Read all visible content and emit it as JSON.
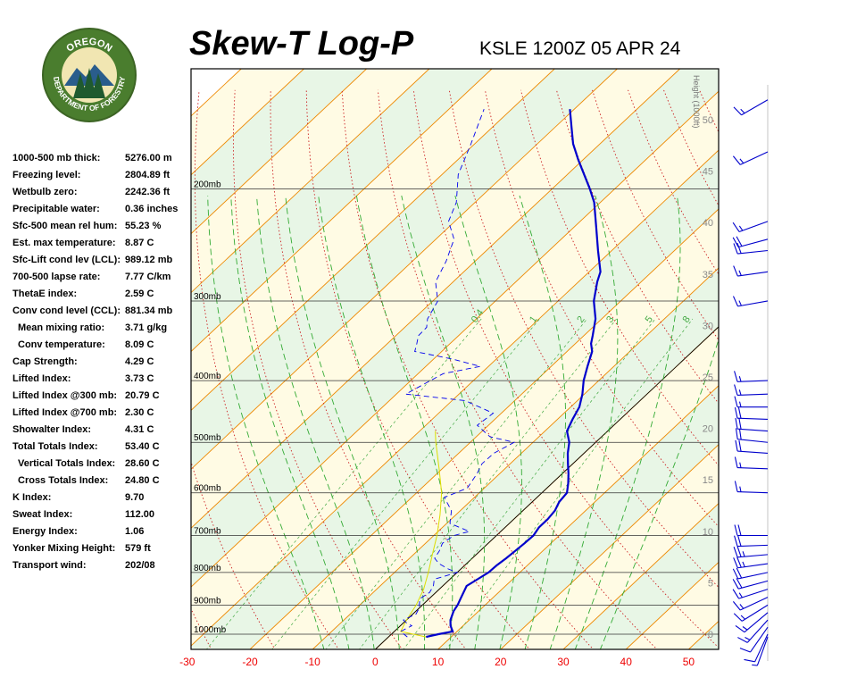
{
  "header": {
    "title": "Skew-T Log-P",
    "station": "KSLE 1200Z 05 APR 24"
  },
  "logo": {
    "top_text": "OREGON",
    "bottom_text": "DEPARTMENT OF FORESTRY",
    "colors": {
      "ring": "#4a7d2e",
      "inner": "#f1e6b2",
      "tree": "#1f5a2e",
      "mountain": "#2a5d8c"
    }
  },
  "indices": [
    {
      "label": "1000-500 mb thick:",
      "value": "5276.00 m",
      "indent": false
    },
    {
      "label": "Freezing level:",
      "value": "2804.89 ft",
      "indent": false
    },
    {
      "label": "Wetbulb zero:",
      "value": "2242.36 ft",
      "indent": false
    },
    {
      "label": "Precipitable water:",
      "value": "0.36 inches",
      "indent": false
    },
    {
      "label": "Sfc-500 mean rel hum:",
      "value": "55.23 %",
      "indent": false
    },
    {
      "label": "Est. max temperature:",
      "value": "8.87 C",
      "indent": false
    },
    {
      "label": "Sfc-Lift cond lev (LCL):",
      "value": "989.12 mb",
      "indent": false
    },
    {
      "label": "700-500 lapse rate:",
      "value": "7.77 C/km",
      "indent": false
    },
    {
      "label": "ThetaE index:",
      "value": "2.59 C",
      "indent": false
    },
    {
      "label": "Conv cond level (CCL):",
      "value": "881.34 mb",
      "indent": false
    },
    {
      "label": "Mean mixing ratio:",
      "value": "3.71 g/kg",
      "indent": true
    },
    {
      "label": "Conv temperature:",
      "value": "8.09 C",
      "indent": true
    },
    {
      "label": "Cap Strength:",
      "value": "4.29 C",
      "indent": false
    },
    {
      "label": "Lifted Index:",
      "value": "3.73 C",
      "indent": false
    },
    {
      "label": "Lifted Index @300 mb:",
      "value": "20.79 C",
      "indent": false
    },
    {
      "label": "Lifted Index @700 mb:",
      "value": "2.30 C",
      "indent": false
    },
    {
      "label": "Showalter Index:",
      "value": "4.31 C",
      "indent": false
    },
    {
      "label": "Total Totals Index:",
      "value": "53.40 C",
      "indent": false
    },
    {
      "label": "Vertical Totals Index:",
      "value": "28.60 C",
      "indent": true
    },
    {
      "label": "Cross Totals Index:",
      "value": "24.80 C",
      "indent": true
    },
    {
      "label": "K Index:",
      "value": "9.70",
      "indent": false
    },
    {
      "label": "Sweat Index:",
      "value": "112.00",
      "indent": false
    },
    {
      "label": "Energy Index:",
      "value": "1.06",
      "indent": false
    },
    {
      "label": "Yonker Mixing Height:",
      "value": "579 ft",
      "indent": false
    },
    {
      "label": "Transport wind:",
      "value": "202/08",
      "indent": false
    }
  ],
  "chart_data": {
    "type": "skew-t",
    "x_range": [
      -33,
      51
    ],
    "x_ticks": [
      -30,
      -20,
      -10,
      0,
      10,
      20,
      30,
      40,
      50
    ],
    "pressure_levels": [
      {
        "p": 200,
        "label": "200mb"
      },
      {
        "p": 300,
        "label": "300mb"
      },
      {
        "p": 400,
        "label": "400mb"
      },
      {
        "p": 500,
        "label": "500mb"
      },
      {
        "p": 600,
        "label": "600mb"
      },
      {
        "p": 700,
        "label": "700mb"
      },
      {
        "p": 800,
        "label": "800mb"
      },
      {
        "p": 900,
        "label": "900mb"
      },
      {
        "p": 1000,
        "label": "1000mb"
      }
    ],
    "height_axis": {
      "label": "Height (1000ft)",
      "ticks": [
        0,
        5,
        10,
        15,
        20,
        25,
        30,
        35,
        40,
        45,
        50
      ]
    },
    "mixing_ratio_labels": [
      "0.4",
      "1",
      "2",
      "3",
      "5",
      "8"
    ],
    "temperature_profile": [
      [
        1010,
        6.0
      ],
      [
        1000,
        7.5
      ],
      [
        990,
        9.3
      ],
      [
        970,
        8.0
      ],
      [
        950,
        7.0
      ],
      [
        920,
        6.0
      ],
      [
        900,
        5.6
      ],
      [
        880,
        5.0
      ],
      [
        860,
        4.4
      ],
      [
        840,
        3.8
      ],
      [
        820,
        4.4
      ],
      [
        800,
        5.0
      ],
      [
        780,
        5.1
      ],
      [
        760,
        5.4
      ],
      [
        740,
        5.6
      ],
      [
        720,
        5.8
      ],
      [
        700,
        5.9
      ],
      [
        680,
        5.4
      ],
      [
        660,
        5.4
      ],
      [
        640,
        5.1
      ],
      [
        620,
        4.3
      ],
      [
        600,
        4.0
      ],
      [
        580,
        2.6
      ],
      [
        560,
        1.0
      ],
      [
        540,
        -0.8
      ],
      [
        520,
        -2.6
      ],
      [
        500,
        -4.2
      ],
      [
        480,
        -6.5
      ],
      [
        460,
        -7.6
      ],
      [
        440,
        -8.6
      ],
      [
        420,
        -10.3
      ],
      [
        400,
        -12.4
      ],
      [
        380,
        -14.2
      ],
      [
        360,
        -16.0
      ],
      [
        350,
        -17.5
      ],
      [
        340,
        -18.6
      ],
      [
        320,
        -21.0
      ],
      [
        300,
        -24.3
      ],
      [
        280,
        -27.0
      ],
      [
        270,
        -28.2
      ],
      [
        250,
        -32.2
      ],
      [
        230,
        -36.4
      ],
      [
        210,
        -41.0
      ],
      [
        200,
        -44.0
      ],
      [
        180,
        -50.8
      ],
      [
        170,
        -54.3
      ],
      [
        160,
        -57.4
      ],
      [
        150,
        -60.7
      ]
    ],
    "dewpoint_profile": [
      [
        1010,
        3.0
      ],
      [
        1000,
        2.0
      ],
      [
        990,
        1.0
      ],
      [
        970,
        1.8
      ],
      [
        960,
        0.5
      ],
      [
        950,
        -0.5
      ],
      [
        930,
        0.5
      ],
      [
        910,
        0.0
      ],
      [
        900,
        -0.5
      ],
      [
        880,
        -1.5
      ],
      [
        860,
        -1.0
      ],
      [
        840,
        -1.5
      ],
      [
        820,
        -2.5
      ],
      [
        800,
        0.0
      ],
      [
        790,
        -2.0
      ],
      [
        775,
        -4.4
      ],
      [
        760,
        -6.0
      ],
      [
        740,
        -6.5
      ],
      [
        720,
        -7.3
      ],
      [
        700,
        -6.8
      ],
      [
        690,
        -5.0
      ],
      [
        670,
        -9.5
      ],
      [
        640,
        -11.4
      ],
      [
        610,
        -14.8
      ],
      [
        590,
        -12.7
      ],
      [
        560,
        -13.6
      ],
      [
        540,
        -14.5
      ],
      [
        520,
        -14.4
      ],
      [
        500,
        -13.0
      ],
      [
        490,
        -17.8
      ],
      [
        470,
        -21.8
      ],
      [
        450,
        -21.3
      ],
      [
        430,
        -27.9
      ],
      [
        420,
        -38.5
      ],
      [
        390,
        -36.0
      ],
      [
        380,
        -31.3
      ],
      [
        370,
        -37.0
      ],
      [
        360,
        -44.3
      ],
      [
        350,
        -45.3
      ],
      [
        340,
        -46.4
      ],
      [
        330,
        -46.5
      ],
      [
        320,
        -47.8
      ],
      [
        300,
        -49.2
      ],
      [
        280,
        -52.8
      ],
      [
        260,
        -54.6
      ],
      [
        240,
        -57.1
      ],
      [
        225,
        -61.0
      ],
      [
        210,
        -63.0
      ],
      [
        190,
        -67.4
      ],
      [
        170,
        -70.6
      ],
      [
        150,
        -74.4
      ]
    ],
    "parcel_profile": [
      [
        1010,
        6.0
      ],
      [
        990,
        1.0
      ],
      [
        950,
        0.0
      ],
      [
        900,
        -1.0
      ],
      [
        850,
        -2.5
      ],
      [
        800,
        -4.6
      ],
      [
        750,
        -7.0
      ],
      [
        700,
        -9.5
      ],
      [
        650,
        -12.5
      ],
      [
        600,
        -16.0
      ],
      [
        550,
        -20.5
      ],
      [
        500,
        -25.5
      ],
      [
        480,
        -27.5
      ]
    ],
    "wind_barbs": [
      {
        "p": 1010,
        "dir": 200,
        "spd": 8
      },
      {
        "p": 1000,
        "dir": 205,
        "spd": 10
      },
      {
        "p": 975,
        "dir": 215,
        "spd": 13
      },
      {
        "p": 950,
        "dir": 222,
        "spd": 15
      },
      {
        "p": 925,
        "dir": 230,
        "spd": 17
      },
      {
        "p": 900,
        "dir": 238,
        "spd": 18
      },
      {
        "p": 875,
        "dir": 245,
        "spd": 18
      },
      {
        "p": 850,
        "dir": 252,
        "spd": 18
      },
      {
        "p": 825,
        "dir": 255,
        "spd": 20
      },
      {
        "p": 800,
        "dir": 258,
        "spd": 22
      },
      {
        "p": 775,
        "dir": 262,
        "spd": 26
      },
      {
        "p": 750,
        "dir": 265,
        "spd": 28
      },
      {
        "p": 725,
        "dir": 268,
        "spd": 24
      },
      {
        "p": 700,
        "dir": 270,
        "spd": 20
      },
      {
        "p": 600,
        "dir": 272,
        "spd": 18
      },
      {
        "p": 550,
        "dir": 272,
        "spd": 18
      },
      {
        "p": 520,
        "dir": 274,
        "spd": 20
      },
      {
        "p": 500,
        "dir": 276,
        "spd": 20
      },
      {
        "p": 480,
        "dir": 274,
        "spd": 22
      },
      {
        "p": 460,
        "dir": 272,
        "spd": 20
      },
      {
        "p": 440,
        "dir": 270,
        "spd": 18
      },
      {
        "p": 420,
        "dir": 268,
        "spd": 16
      },
      {
        "p": 400,
        "dir": 268,
        "spd": 15
      },
      {
        "p": 300,
        "dir": 260,
        "spd": 15
      },
      {
        "p": 270,
        "dir": 262,
        "spd": 18
      },
      {
        "p": 250,
        "dir": 264,
        "spd": 20
      },
      {
        "p": 240,
        "dir": 255,
        "spd": 20
      },
      {
        "p": 225,
        "dir": 250,
        "spd": 18
      },
      {
        "p": 175,
        "dir": 245,
        "spd": 18
      },
      {
        "p": 145,
        "dir": 240,
        "spd": 15
      }
    ],
    "colors": {
      "temperature": "#0000cc",
      "dewpoint": "#0000ee",
      "parcel": "#dddd00",
      "isotherm": "#ee8800",
      "dry_adiabat": "#cc2222",
      "moist_adiabat": "#33aa33",
      "mixing_ratio": "#44aa44",
      "isobar": "#333333",
      "band_yellow": "#fffbe4",
      "band_green": "#e8f6e6"
    }
  }
}
